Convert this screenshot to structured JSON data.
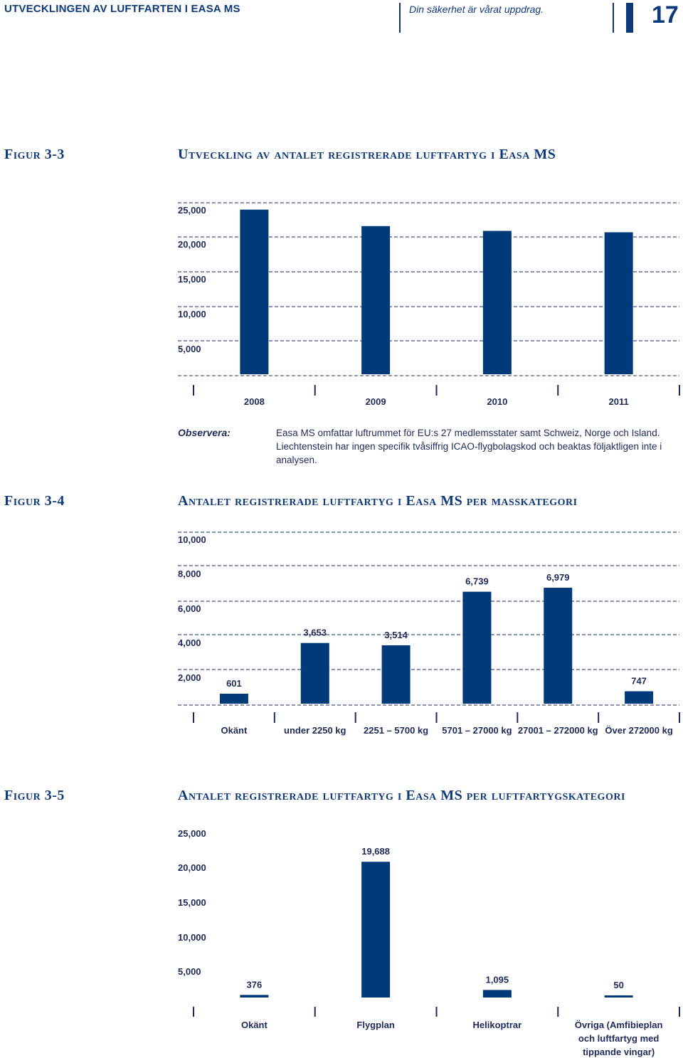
{
  "header": {
    "title": "UTVECKLINGEN AV LUFTFARTEN I EASA MS",
    "slogan": "Din säkerhet är vårat uppdrag.",
    "page_number": "17"
  },
  "figures": [
    {
      "label": "Figur 3-3",
      "title": "Utveckling av antalet registrerade luftfartyg i Easa MS"
    },
    {
      "label": "Figur 3-4",
      "title": "Antalet registrerade luftfartyg i Easa MS per masskategori"
    },
    {
      "label": "Figur 3-5",
      "title": "Antalet registrerade luftfartyg i Easa MS per luftfartygskategori"
    }
  ],
  "note": {
    "label": "Observera:",
    "text": "Easa MS omfattar luftrummet för EU:s 27 medlemsstater samt Schweiz, Norge och Island. Liechtenstein har ingen specifik tvåsiffrig ICAO-flygbolagskod och beaktas följaktligen inte i analysen."
  },
  "chart_data": [
    {
      "type": "bar",
      "categories": [
        "2008",
        "2009",
        "2010",
        "2011"
      ],
      "values": [
        24000,
        21600,
        20900,
        20700
      ],
      "yticks": [
        "5,000",
        "10,000",
        "15,000",
        "20,000",
        "25,000"
      ],
      "ylim": [
        0,
        25000
      ],
      "grid": true
    },
    {
      "type": "bar",
      "categories": [
        "Okänt",
        "under 2250 kg",
        "2251 – 5700 kg",
        "5701 – 27000 kg",
        "27001 – 272000 kg",
        "Över 272000 kg"
      ],
      "values": [
        601,
        3653,
        3514,
        6739,
        6979,
        747
      ],
      "data_labels": [
        "601",
        "3,653",
        "3,514",
        "6,739",
        "6,979",
        "747"
      ],
      "yticks": [
        "2,000",
        "4,000",
        "6,000",
        "8,000",
        "10,000"
      ],
      "ylim": [
        0,
        10000
      ],
      "grid": true
    },
    {
      "type": "bar",
      "categories": [
        "Okänt",
        "Flygplan",
        "Helikoptrar",
        "Övriga (Amfibieplan och luftfartyg med tippande vingar)"
      ],
      "category_lines": [
        [
          "Okänt"
        ],
        [
          "Flygplan"
        ],
        [
          "Helikoptrar"
        ],
        [
          "Övriga (Amfibieplan",
          "och luftfartyg med",
          "tippande vingar)"
        ]
      ],
      "values": [
        376,
        19688,
        1095,
        50
      ],
      "data_labels": [
        "376",
        "19,688",
        "1,095",
        "50"
      ],
      "yticks": [
        "5,000",
        "10,000",
        "15,000",
        "20,000",
        "25,000"
      ],
      "ylim": [
        0,
        25000
      ],
      "grid": false
    }
  ]
}
